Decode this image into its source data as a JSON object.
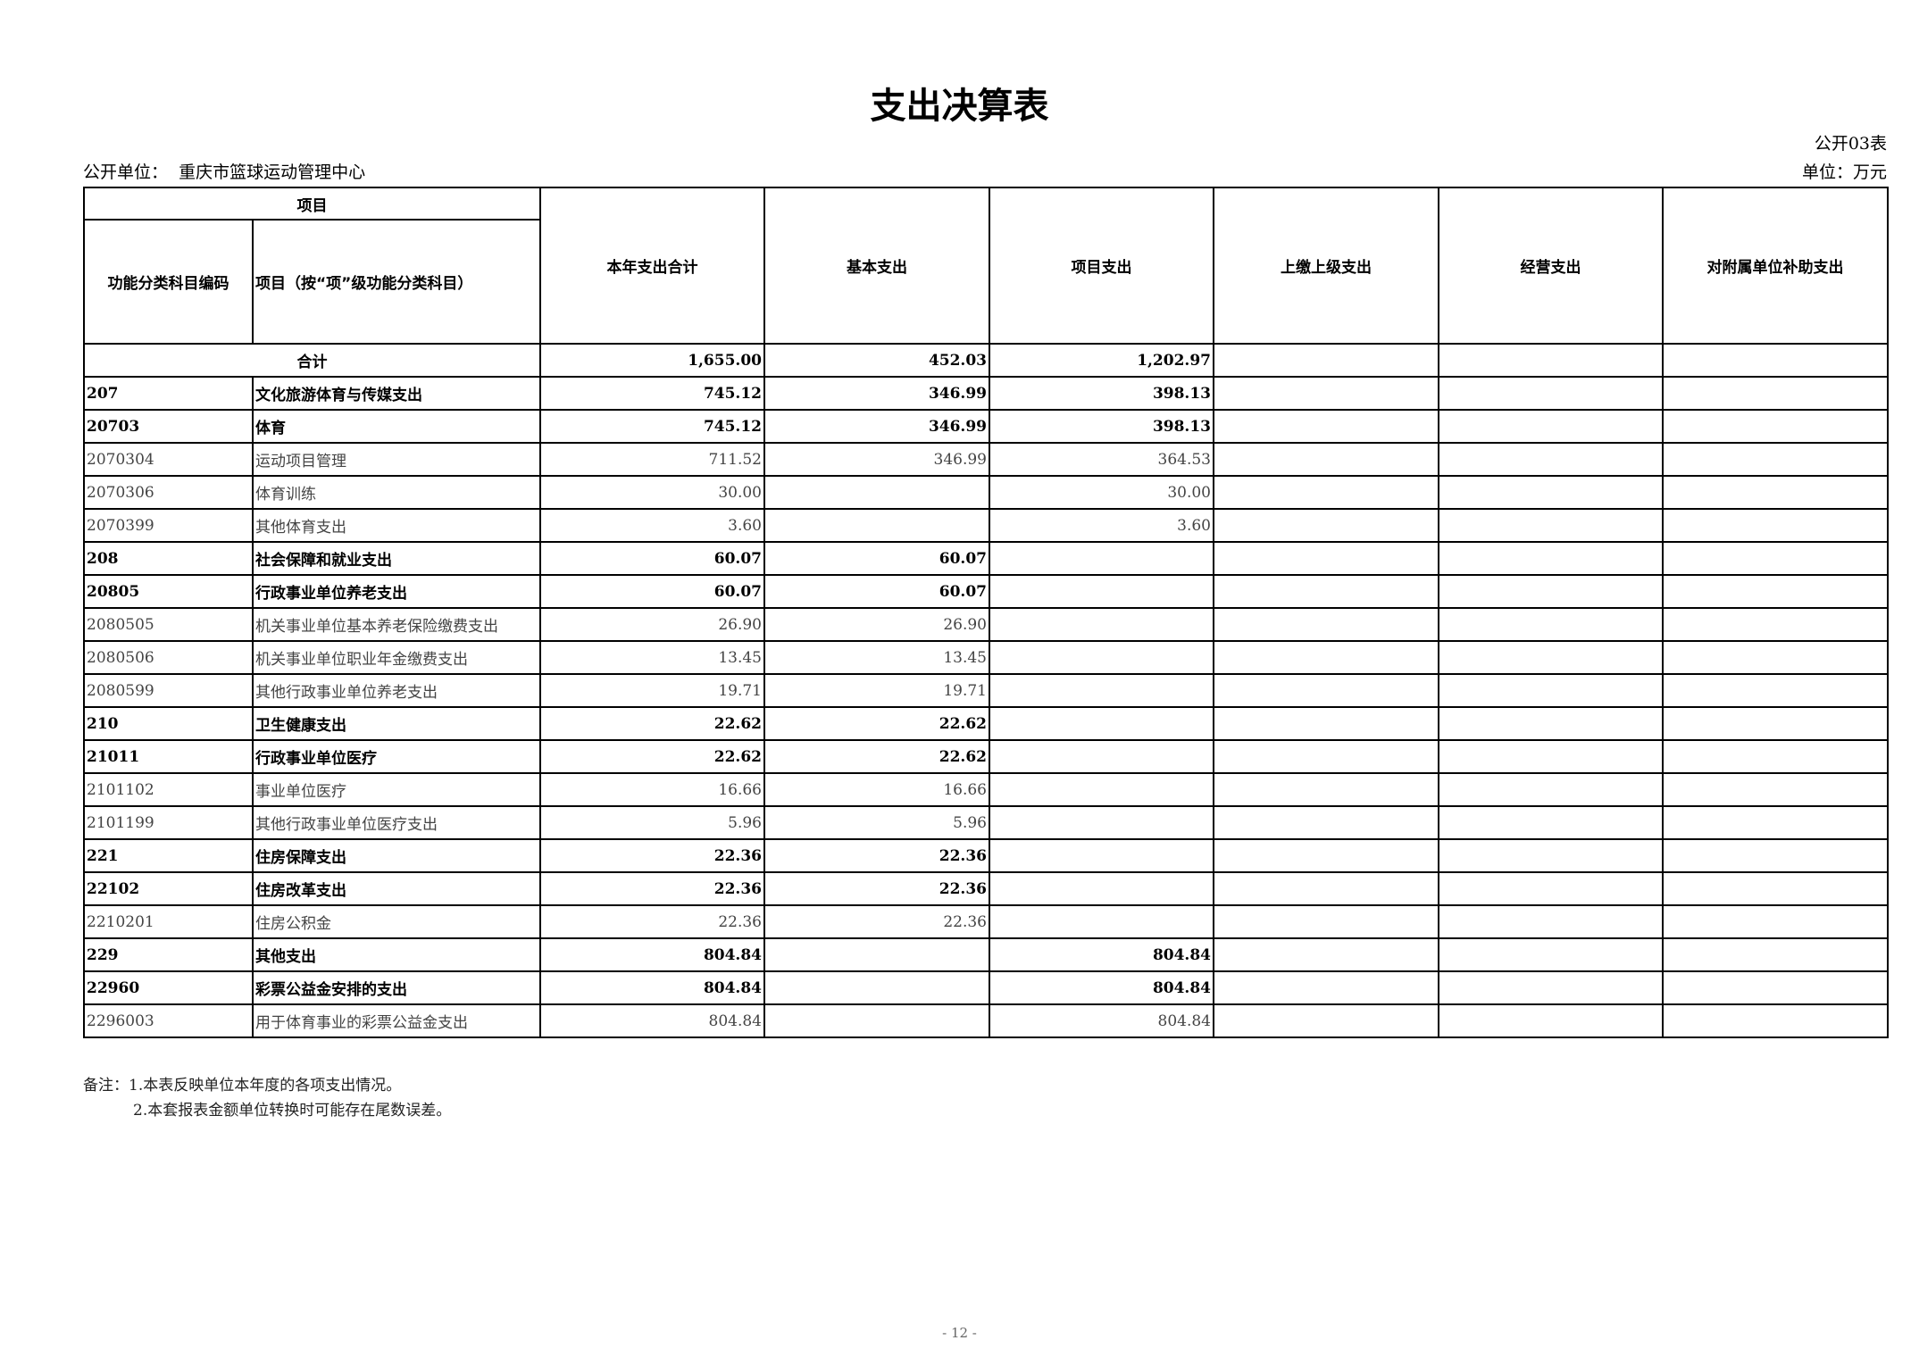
{
  "title": "支出决算表",
  "form_no": "公开03表",
  "org_label": "公开单位：",
  "org_name": "重庆市篮球运动管理中心",
  "unit": "单位：万元",
  "headers": {
    "item_group": "项目",
    "code": "功能分类科目编码",
    "name": "项目（按“项”级功能分类科目）",
    "total": "本年支出合计",
    "basic": "基本支出",
    "project": "项目支出",
    "upper": "上缴上级支出",
    "business": "经营支出",
    "subsidy": "对附属单位补助支出"
  },
  "total_row": {
    "label": "合计",
    "total": "1,655.00",
    "basic": "452.03",
    "project": "1,202.97",
    "upper": "",
    "business": "",
    "subsidy": ""
  },
  "rows": [
    {
      "code": "207",
      "name": "文化旅游体育与传媒支出",
      "total": "745.12",
      "basic": "346.99",
      "project": "398.13",
      "bold": true
    },
    {
      "code": "20703",
      "name": "体育",
      "total": "745.12",
      "basic": "346.99",
      "project": "398.13",
      "bold": true
    },
    {
      "code": "2070304",
      "name": "运动项目管理",
      "total": "711.52",
      "basic": "346.99",
      "project": "364.53",
      "bold": false
    },
    {
      "code": "2070306",
      "name": "体育训练",
      "total": "30.00",
      "basic": "",
      "project": "30.00",
      "bold": false
    },
    {
      "code": "2070399",
      "name": "其他体育支出",
      "total": "3.60",
      "basic": "",
      "project": "3.60",
      "bold": false
    },
    {
      "code": "208",
      "name": "社会保障和就业支出",
      "total": "60.07",
      "basic": "60.07",
      "project": "",
      "bold": true
    },
    {
      "code": "20805",
      "name": "行政事业单位养老支出",
      "total": "60.07",
      "basic": "60.07",
      "project": "",
      "bold": true
    },
    {
      "code": "2080505",
      "name": "机关事业单位基本养老保险缴费支出",
      "total": "26.90",
      "basic": "26.90",
      "project": "",
      "bold": false
    },
    {
      "code": "2080506",
      "name": "机关事业单位职业年金缴费支出",
      "total": "13.45",
      "basic": "13.45",
      "project": "",
      "bold": false
    },
    {
      "code": "2080599",
      "name": "其他行政事业单位养老支出",
      "total": "19.71",
      "basic": "19.71",
      "project": "",
      "bold": false
    },
    {
      "code": "210",
      "name": "卫生健康支出",
      "total": "22.62",
      "basic": "22.62",
      "project": "",
      "bold": true
    },
    {
      "code": "21011",
      "name": "行政事业单位医疗",
      "total": "22.62",
      "basic": "22.62",
      "project": "",
      "bold": true
    },
    {
      "code": "2101102",
      "name": "事业单位医疗",
      "total": "16.66",
      "basic": "16.66",
      "project": "",
      "bold": false
    },
    {
      "code": "2101199",
      "name": "其他行政事业单位医疗支出",
      "total": "5.96",
      "basic": "5.96",
      "project": "",
      "bold": false
    },
    {
      "code": "221",
      "name": "住房保障支出",
      "total": "22.36",
      "basic": "22.36",
      "project": "",
      "bold": true
    },
    {
      "code": "22102",
      "name": "住房改革支出",
      "total": "22.36",
      "basic": "22.36",
      "project": "",
      "bold": true
    },
    {
      "code": "2210201",
      "name": "住房公积金",
      "total": "22.36",
      "basic": "22.36",
      "project": "",
      "bold": false
    },
    {
      "code": "229",
      "name": "其他支出",
      "total": "804.84",
      "basic": "",
      "project": "804.84",
      "bold": true
    },
    {
      "code": "22960",
      "name": "彩票公益金安排的支出",
      "total": "804.84",
      "basic": "",
      "project": "804.84",
      "bold": true
    },
    {
      "code": "2296003",
      "name": "用于体育事业的彩票公益金支出",
      "total": "804.84",
      "basic": "",
      "project": "804.84",
      "bold": false
    }
  ],
  "notes": [
    "备注：1.本表反映单位本年度的各项支出情况。",
    "2.本套报表金额单位转换时可能存在尾数误差。"
  ],
  "page_number": "- 12 -"
}
